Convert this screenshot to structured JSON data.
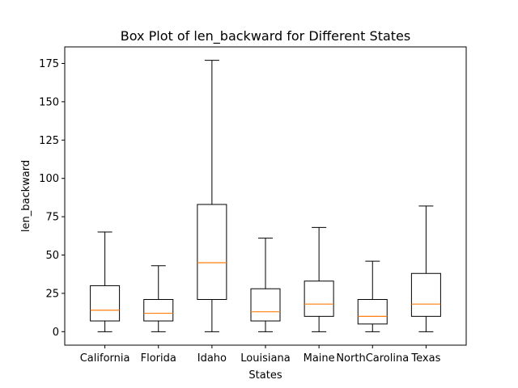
{
  "chart_data": {
    "type": "box",
    "title": "Box Plot of len_backward for Different States",
    "xlabel": "States",
    "ylabel": "len_backward",
    "ylim": [
      -8.8,
      185.8
    ],
    "yticks": [
      0,
      25,
      50,
      75,
      100,
      125,
      150,
      175
    ],
    "grid": false,
    "categories": [
      "California",
      "Florida",
      "Idaho",
      "Louisiana",
      "Maine",
      "NorthCarolina",
      "Texas"
    ],
    "boxes": [
      {
        "whisker_low": 0,
        "q1": 7,
        "median": 14,
        "q3": 30,
        "whisker_high": 65
      },
      {
        "whisker_low": 0,
        "q1": 7,
        "median": 12,
        "q3": 21,
        "whisker_high": 43
      },
      {
        "whisker_low": 0,
        "q1": 21,
        "median": 45,
        "q3": 83,
        "whisker_high": 177
      },
      {
        "whisker_low": 0,
        "q1": 7,
        "median": 13,
        "q3": 28,
        "whisker_high": 61
      },
      {
        "whisker_low": 0,
        "q1": 10,
        "median": 18,
        "q3": 33,
        "whisker_high": 68
      },
      {
        "whisker_low": 0,
        "q1": 5,
        "median": 10,
        "q3": 21,
        "whisker_high": 46
      },
      {
        "whisker_low": 0,
        "q1": 10,
        "median": 18,
        "q3": 38,
        "whisker_high": 82
      }
    ],
    "colors": {
      "box": "#000000",
      "median": "#ff7f0e"
    }
  }
}
